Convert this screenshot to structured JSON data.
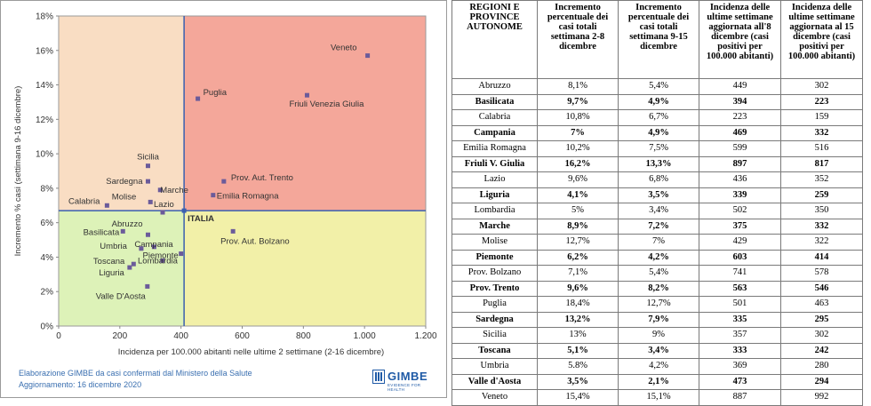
{
  "chart_data": {
    "type": "scatter",
    "xlabel": "Incidenza per 100.000 abitanti nelle ultime 2 settimane (2-16 dicembre)",
    "ylabel": "Incremento % casi (settimana 9-16 dicembre)",
    "xlim": [
      0,
      1200
    ],
    "ylim": [
      0,
      18
    ],
    "x_ticks": [
      "0",
      "200",
      "400",
      "600",
      "800",
      "1.000",
      "1.200"
    ],
    "y_ticks": [
      "0%",
      "2%",
      "4%",
      "6%",
      "8%",
      "10%",
      "12%",
      "14%",
      "16%",
      "18%"
    ],
    "reference": {
      "label": "ITALIA",
      "x": 410,
      "y": 6.7
    },
    "quadrant_colors": {
      "top_left": "#f9ddc3",
      "top_right": "#f4a79a",
      "bottom_left": "#ddf2b8",
      "bottom_right": "#f2f0a8"
    },
    "points": [
      {
        "label": "Veneto",
        "x": 1010,
        "y": 15.7
      },
      {
        "label": "Puglia",
        "x": 455,
        "y": 13.2
      },
      {
        "label": "Friuli Venezia Giulia",
        "x": 812,
        "y": 13.4
      },
      {
        "label": "Sicilia",
        "x": 292,
        "y": 9.3
      },
      {
        "label": "Sardegna",
        "x": 292,
        "y": 8.4
      },
      {
        "label": "Prov. Aut. Trento",
        "x": 540,
        "y": 8.4
      },
      {
        "label": "Marche",
        "x": 332,
        "y": 7.9
      },
      {
        "label": "Calabria",
        "x": 158,
        "y": 7.0
      },
      {
        "label": "Molise",
        "x": 300,
        "y": 7.2
      },
      {
        "label": "Emilia Romagna",
        "x": 505,
        "y": 7.6
      },
      {
        "label": "Lazio",
        "x": 340,
        "y": 6.6
      },
      {
        "label": "Abruzzo",
        "x": 292,
        "y": 5.3
      },
      {
        "label": "Basilicata",
        "x": 210,
        "y": 5.5
      },
      {
        "label": "Campania",
        "x": 312,
        "y": 4.6
      },
      {
        "label": "Umbria",
        "x": 270,
        "y": 4.5
      },
      {
        "label": "Piemonte",
        "x": 400,
        "y": 4.2
      },
      {
        "label": "Toscana",
        "x": 245,
        "y": 3.6
      },
      {
        "label": "Lombardia",
        "x": 340,
        "y": 3.8
      },
      {
        "label": "Liguria",
        "x": 232,
        "y": 3.4
      },
      {
        "label": "Valle D'Aosta",
        "x": 290,
        "y": 2.3
      },
      {
        "label": "Prov. Aut. Bolzano",
        "x": 570,
        "y": 5.5
      }
    ],
    "colors": {
      "quadrant_line": "#3a5fb0",
      "point": "#6b5b9a",
      "reference_point": "#3a5fb0"
    }
  },
  "footer": {
    "line1": "Elaborazione GIMBE da casi confermati dal Ministero della Salute",
    "line2": "Aggiornamento: 16 dicembre 2020"
  },
  "logo": {
    "name": "GIMBE",
    "tagline": "EVIDENCE FOR HEALTH"
  },
  "table": {
    "headers": [
      "REGIONI E PROVINCE AUTONOME",
      "Incremento percentuale dei casi totali settimana 2-8 dicembre",
      "Incremento percentuale dei casi totali settimana 9-15 dicembre",
      "Incidenza delle ultime settimane aggiornata all'8 dicembre (casi positivi per 100.000 abitanti)",
      "Incidenza delle ultime settimane aggiornata al 15 dicembre (casi positivi per 100.000 abitanti)"
    ],
    "rows": [
      {
        "cells": [
          "Abruzzo",
          "8,1%",
          "5,4%",
          "449",
          "302"
        ],
        "bold": false
      },
      {
        "cells": [
          "Basilicata",
          "9,7%",
          "4,9%",
          "394",
          "223"
        ],
        "bold": true
      },
      {
        "cells": [
          "Calabria",
          "10,8%",
          "6,7%",
          "223",
          "159"
        ],
        "bold": false
      },
      {
        "cells": [
          "Campania",
          "7%",
          "4,9%",
          "469",
          "332"
        ],
        "bold": true
      },
      {
        "cells": [
          "Emilia Romagna",
          "10,2%",
          "7,5%",
          "599",
          "516"
        ],
        "bold": false
      },
      {
        "cells": [
          "Friuli V. Giulia",
          "16,2%",
          "13,3%",
          "897",
          "817"
        ],
        "bold": true
      },
      {
        "cells": [
          "Lazio",
          "9,6%",
          "6,8%",
          "436",
          "352"
        ],
        "bold": false
      },
      {
        "cells": [
          "Liguria",
          "4,1%",
          "3,5%",
          "339",
          "259"
        ],
        "bold": true
      },
      {
        "cells": [
          "Lombardia",
          "5%",
          "3,4%",
          "502",
          "350"
        ],
        "bold": false
      },
      {
        "cells": [
          "Marche",
          "8,9%",
          "7,2%",
          "375",
          "332"
        ],
        "bold": true
      },
      {
        "cells": [
          "Molise",
          "12,7%",
          "7%",
          "429",
          "322"
        ],
        "bold": false
      },
      {
        "cells": [
          "Piemonte",
          "6,2%",
          "4,2%",
          "603",
          "414"
        ],
        "bold": true
      },
      {
        "cells": [
          "Prov. Bolzano",
          "7,1%",
          "5,4%",
          "741",
          "578"
        ],
        "bold": false
      },
      {
        "cells": [
          "Prov. Trento",
          "9,6%",
          "8,2%",
          "563",
          "546"
        ],
        "bold": true
      },
      {
        "cells": [
          "Puglia",
          "18,4%",
          "12,7%",
          "501",
          "463"
        ],
        "bold": false
      },
      {
        "cells": [
          "Sardegna",
          "13,2%",
          "7,9%",
          "335",
          "295"
        ],
        "bold": true
      },
      {
        "cells": [
          "Sicilia",
          "13%",
          "9%",
          "357",
          "302"
        ],
        "bold": false
      },
      {
        "cells": [
          "Toscana",
          "5,1%",
          "3,4%",
          "333",
          "242"
        ],
        "bold": true
      },
      {
        "cells": [
          "Umbria",
          "5.8%",
          "4,2%",
          "369",
          "280"
        ],
        "bold": false
      },
      {
        "cells": [
          "Valle d'Aosta",
          "3,5%",
          "2,1%",
          "473",
          "294"
        ],
        "bold": true
      },
      {
        "cells": [
          "Veneto",
          "15,4%",
          "15,1%",
          "887",
          "992"
        ],
        "bold": false
      }
    ]
  }
}
